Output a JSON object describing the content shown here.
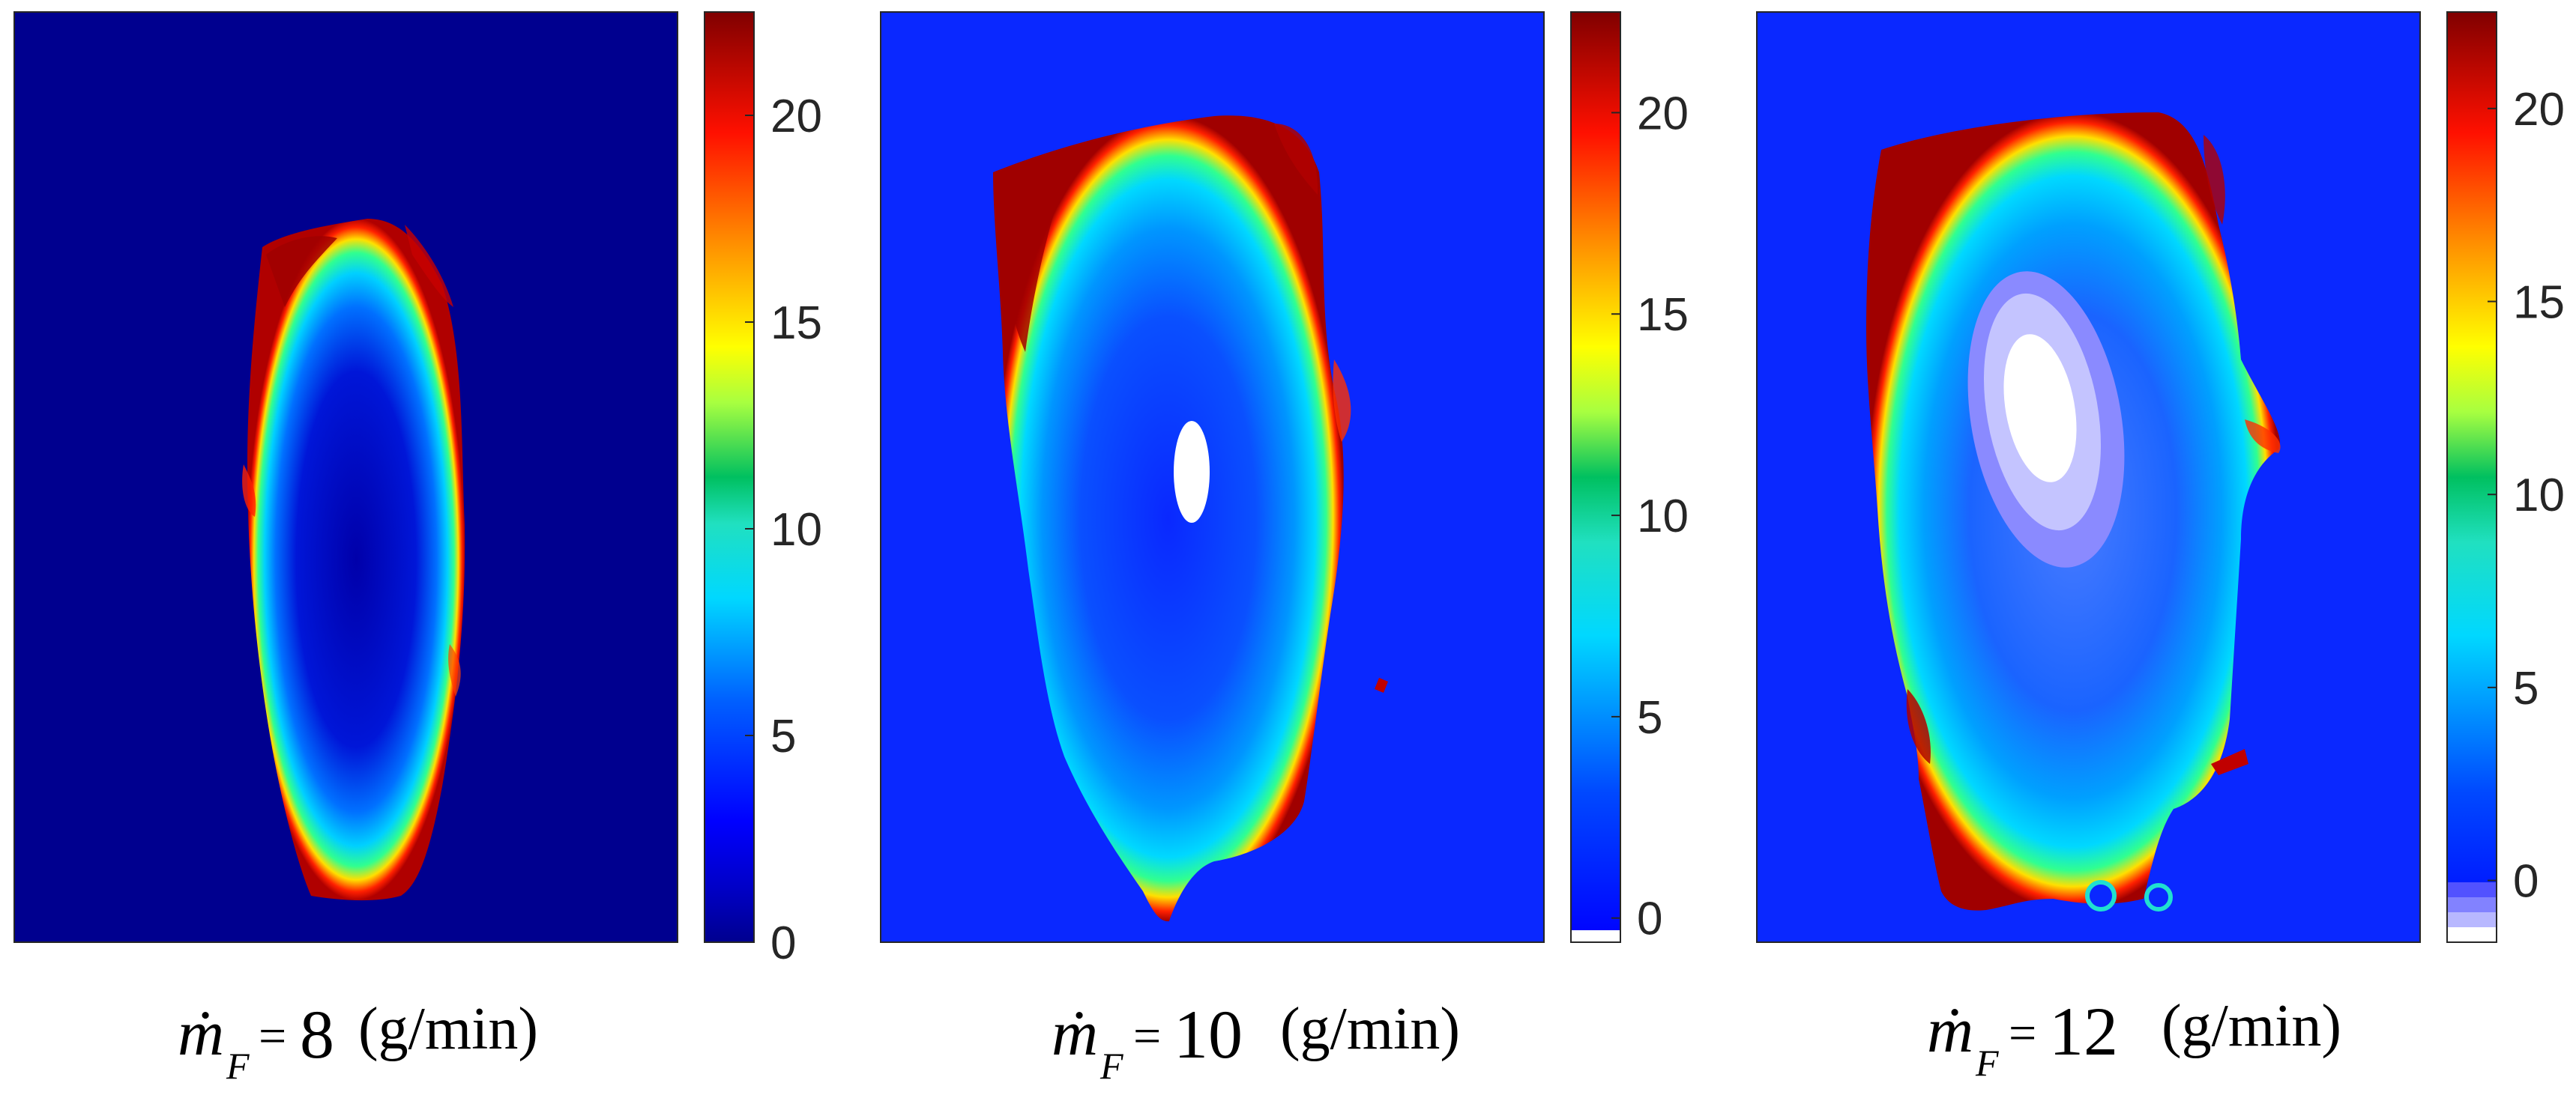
{
  "chart_data": [
    {
      "type": "heatmap",
      "title": "",
      "xlabel": "",
      "ylabel": "",
      "colormap": "jet",
      "color_range": [
        0,
        22.5
      ],
      "colorbar_ticks": [
        0,
        5,
        10,
        15,
        20
      ],
      "colorbar_tick_labels": [
        "0",
        "5",
        "10",
        "15",
        "20"
      ],
      "background_value": 0,
      "caption": {
        "symbol": "ṁ",
        "subscript": "F",
        "equals": "=",
        "value": "8",
        "unit": "(g/min)"
      }
    },
    {
      "type": "heatmap",
      "title": "",
      "xlabel": "",
      "ylabel": "",
      "colormap": "jet (white below 0)",
      "color_range": [
        -0.6,
        22.5
      ],
      "colorbar_ticks": [
        0,
        5,
        10,
        15,
        20
      ],
      "colorbar_tick_labels": [
        "0",
        "5",
        "10",
        "15",
        "20"
      ],
      "background_value": 1.5,
      "caption": {
        "symbol": "ṁ",
        "subscript": "F",
        "equals": "=",
        "value": "10",
        "unit": "(g/min)"
      }
    },
    {
      "type": "heatmap",
      "title": "",
      "xlabel": "",
      "ylabel": "",
      "colormap": "jet (lavender-to-white below 0)",
      "color_range": [
        -1.6,
        22.5
      ],
      "colorbar_ticks": [
        0,
        5,
        10,
        15,
        20
      ],
      "colorbar_tick_labels": [
        "0",
        "5",
        "10",
        "15",
        "20"
      ],
      "background_value": 1.2,
      "caption": {
        "symbol": "ṁ",
        "subscript": "F",
        "equals": "=",
        "value": "12",
        "unit": "(g/min)"
      }
    }
  ]
}
